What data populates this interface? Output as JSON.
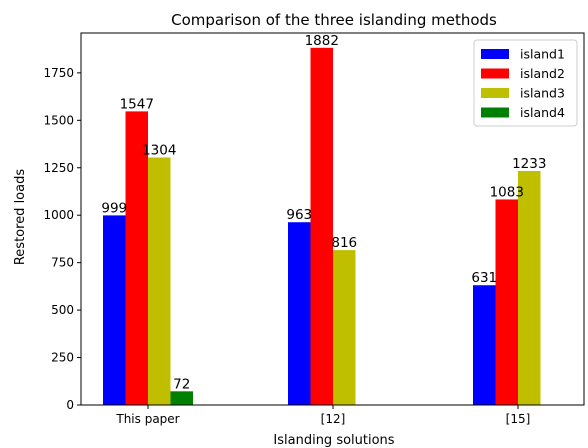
{
  "chart_data": {
    "type": "bar",
    "title": "Comparison of the three islanding methods",
    "xlabel": "Islanding solutions",
    "ylabel": "Restored loads",
    "categories": [
      "This paper",
      "[12]",
      "[15]"
    ],
    "series": [
      {
        "name": "island1",
        "color": "#0000ff",
        "values": [
          999,
          963,
          631
        ]
      },
      {
        "name": "island2",
        "color": "#ff0000",
        "values": [
          1547,
          1882,
          1083
        ]
      },
      {
        "name": "island3",
        "color": "#bfbf00",
        "values": [
          1304,
          816,
          1233
        ]
      },
      {
        "name": "island4",
        "color": "#008000",
        "values": [
          72,
          null,
          null
        ]
      }
    ],
    "ylim": [
      0,
      1960
    ],
    "yticks": [
      0,
      250,
      500,
      750,
      1000,
      1250,
      1500,
      1750
    ],
    "grid": false,
    "legend_position": "top-right"
  }
}
